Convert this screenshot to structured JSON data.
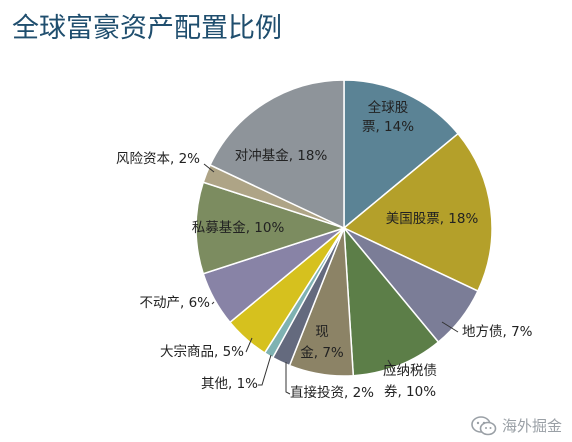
{
  "title": "全球富豪资产配置比例",
  "watermark": {
    "text": "海外掘金",
    "icon": "wechat-icon"
  },
  "chart_data": {
    "type": "pie",
    "title": "全球富豪资产配置比例",
    "unit": "%",
    "slices": [
      {
        "name": "全球股票",
        "value": 14,
        "color": "#5b8395",
        "label_lines": [
          "全球股",
          "票, 14%"
        ]
      },
      {
        "name": "美国股票",
        "value": 18,
        "color": "#b4a02a",
        "label_lines": [
          "美国股票, 18%"
        ]
      },
      {
        "name": "地方债",
        "value": 7,
        "color": "#7b7d97",
        "label_lines": [
          "地方债, 7%"
        ]
      },
      {
        "name": "应纳税债券",
        "value": 10,
        "color": "#5c7e48",
        "label_lines": [
          "应纳税债",
          "券, 10%"
        ]
      },
      {
        "name": "现金",
        "value": 7,
        "color": "#8c8366",
        "label_lines": [
          "现",
          "金, 7%"
        ]
      },
      {
        "name": "直接投资",
        "value": 2,
        "color": "#646a7e",
        "label_lines": [
          "直接投资, 2%"
        ]
      },
      {
        "name": "其他",
        "value": 1,
        "color": "#7fb2b2",
        "label_lines": [
          "其他, 1%"
        ]
      },
      {
        "name": "大宗商品",
        "value": 5,
        "color": "#d6c11e",
        "label_lines": [
          "大宗商品, 5%"
        ]
      },
      {
        "name": "不动产",
        "value": 6,
        "color": "#8883a6",
        "label_lines": [
          "不动产, 6%"
        ]
      },
      {
        "name": "私募基金",
        "value": 10,
        "color": "#7c8c60",
        "label_lines": [
          "私募基金, 10%"
        ]
      },
      {
        "name": "风险资本",
        "value": 2,
        "color": "#aea486",
        "label_lines": [
          "风险资本, 2%"
        ]
      },
      {
        "name": "对冲基金",
        "value": 18,
        "color": "#8e949a",
        "label_lines": [
          "对冲基金, 18%"
        ]
      }
    ]
  }
}
